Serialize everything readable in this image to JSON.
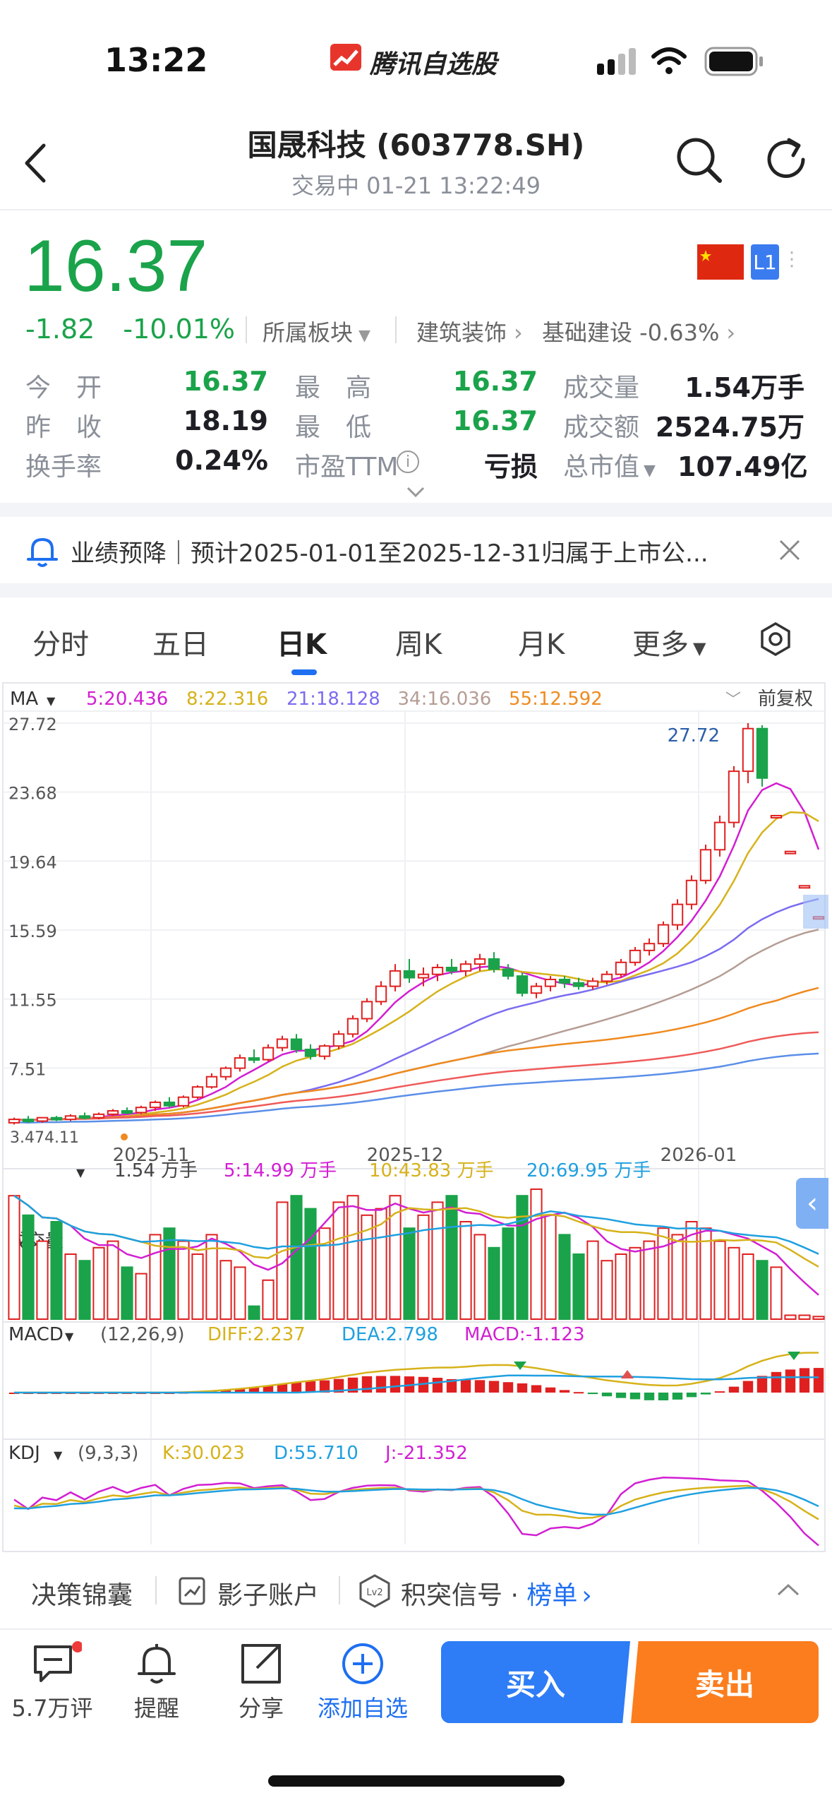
{
  "status_bar": {
    "time": "13:22",
    "app_brand": "腾讯自选股"
  },
  "header": {
    "title": "国晟科技 (603778.SH)",
    "subtitle": "交易中   01-21 13:22:49"
  },
  "quote": {
    "price": "16.37",
    "change": "-1.82",
    "change_pct": "-10.01%",
    "sector_label": "所属板块",
    "sector_1": "建筑装饰",
    "sector_2": "基础建设 -0.63%",
    "level_badge": "L1",
    "stats": {
      "open_label": "今　开",
      "open": "16.37",
      "high_label": "最　高",
      "high": "16.37",
      "volume_label": "成交量",
      "volume": "1.54万手",
      "prev_close_label": "昨　收",
      "prev_close": "18.19",
      "low_label": "最　低",
      "low": "16.37",
      "amount_label": "成交额",
      "amount": "2524.75万",
      "turnover_label": "换手率",
      "turnover": "0.24%",
      "pe_label": "市盈TTM",
      "pe": "亏损",
      "mcap_label": "总市值",
      "mcap": "107.49亿"
    }
  },
  "notice": {
    "text": "业绩预降｜预计2025-01-01至2025-12-31归属于上市公..."
  },
  "tabs": [
    {
      "label": "分时"
    },
    {
      "label": "五日"
    },
    {
      "label": "日K"
    },
    {
      "label": "周K"
    },
    {
      "label": "月K"
    },
    {
      "label": "更多"
    }
  ],
  "colors": {
    "up": "#e02020",
    "down": "#1aa34a",
    "accent": "#1e6ff1",
    "buy": "#2e7cf6",
    "sell": "#fb7d1e"
  },
  "chart_data": [
    {
      "type": "candlestick",
      "title": "",
      "indicator": "MA",
      "adjust_label": "前复权",
      "ma_legend": [
        {
          "name": "5",
          "value": "20.436",
          "color": "#d21fd2"
        },
        {
          "name": "8",
          "value": "22.316",
          "color": "#d6b21a"
        },
        {
          "name": "21",
          "value": "18.128",
          "color": "#7b6cf0"
        },
        {
          "name": "34",
          "value": "16.036",
          "color": "#b59d94"
        },
        {
          "name": "55",
          "value": "12.592",
          "color": "#ef8a1f"
        }
      ],
      "ylim": [
        3.47,
        27.72
      ],
      "y_ticks": [
        "27.72",
        "23.68",
        "19.64",
        "15.59",
        "11.55",
        "7.51"
      ],
      "x_ticks": [
        "2025-11",
        "2025-12",
        "2026-01"
      ],
      "annotations": [
        "27.72",
        "3.47",
        "4.11"
      ],
      "candles": [
        [
          4.3,
          4.6,
          4.2,
          4.5
        ],
        [
          4.5,
          4.7,
          4.3,
          4.4
        ],
        [
          4.4,
          4.6,
          4.3,
          4.6
        ],
        [
          4.6,
          4.7,
          4.4,
          4.5
        ],
        [
          4.5,
          4.8,
          4.4,
          4.7
        ],
        [
          4.7,
          4.9,
          4.5,
          4.6
        ],
        [
          4.6,
          4.9,
          4.5,
          4.8
        ],
        [
          4.8,
          5.1,
          4.7,
          5.0
        ],
        [
          5.0,
          5.2,
          4.8,
          4.9
        ],
        [
          4.9,
          5.3,
          4.8,
          5.2
        ],
        [
          5.2,
          5.6,
          5.0,
          5.5
        ],
        [
          5.5,
          5.8,
          5.2,
          5.3
        ],
        [
          5.3,
          5.9,
          5.2,
          5.8
        ],
        [
          5.8,
          6.5,
          5.7,
          6.4
        ],
        [
          6.4,
          7.2,
          6.3,
          7.0
        ],
        [
          7.0,
          7.6,
          6.8,
          7.5
        ],
        [
          7.5,
          8.3,
          7.3,
          8.1
        ],
        [
          8.1,
          8.6,
          7.8,
          8.0
        ],
        [
          8.0,
          8.9,
          7.9,
          8.7
        ],
        [
          8.7,
          9.4,
          8.5,
          9.2
        ],
        [
          9.2,
          9.5,
          8.4,
          8.6
        ],
        [
          8.6,
          8.9,
          8.0,
          8.2
        ],
        [
          8.2,
          8.9,
          8.0,
          8.8
        ],
        [
          8.8,
          9.7,
          8.6,
          9.5
        ],
        [
          9.5,
          10.6,
          9.3,
          10.4
        ],
        [
          10.4,
          11.6,
          10.2,
          11.4
        ],
        [
          11.4,
          12.6,
          11.2,
          12.3
        ],
        [
          12.3,
          13.6,
          12.0,
          13.2
        ],
        [
          13.2,
          13.9,
          12.5,
          12.8
        ],
        [
          12.8,
          13.4,
          12.3,
          13.0
        ],
        [
          13.0,
          13.6,
          12.6,
          13.4
        ],
        [
          13.4,
          13.9,
          13.0,
          13.2
        ],
        [
          13.2,
          13.8,
          12.9,
          13.6
        ],
        [
          13.6,
          14.2,
          13.2,
          13.9
        ],
        [
          13.9,
          14.3,
          13.1,
          13.3
        ],
        [
          13.3,
          13.6,
          12.7,
          12.9
        ],
        [
          12.9,
          13.1,
          11.7,
          11.9
        ],
        [
          11.9,
          12.5,
          11.6,
          12.3
        ],
        [
          12.3,
          12.9,
          12.0,
          12.7
        ],
        [
          12.7,
          12.9,
          12.2,
          12.5
        ],
        [
          12.5,
          12.8,
          12.1,
          12.3
        ],
        [
          12.3,
          12.8,
          12.1,
          12.6
        ],
        [
          12.6,
          13.2,
          12.4,
          13.0
        ],
        [
          13.0,
          13.9,
          12.8,
          13.7
        ],
        [
          13.7,
          14.6,
          13.5,
          14.4
        ],
        [
          14.4,
          15.1,
          14.1,
          14.8
        ],
        [
          14.8,
          16.1,
          14.6,
          15.9
        ],
        [
          15.9,
          17.4,
          15.6,
          17.1
        ],
        [
          17.1,
          18.8,
          16.8,
          18.5
        ],
        [
          18.5,
          20.6,
          18.3,
          20.3
        ],
        [
          20.3,
          22.3,
          19.9,
          21.9
        ],
        [
          21.9,
          25.2,
          21.6,
          24.9
        ],
        [
          24.9,
          27.72,
          24.2,
          27.4
        ],
        [
          27.4,
          27.6,
          24.0,
          24.5
        ],
        [
          22.3,
          22.3,
          22.3,
          22.3
        ],
        [
          20.2,
          20.2,
          20.2,
          20.2
        ],
        [
          18.19,
          18.19,
          18.19,
          18.19
        ],
        [
          16.37,
          16.37,
          16.37,
          16.37
        ]
      ]
    },
    {
      "type": "bar",
      "title": "",
      "indicator": "成交量",
      "legend": [
        {
          "name": "",
          "value": "1.54 万手",
          "color": "#444444"
        },
        {
          "name": "5",
          "value": "14.99 万手",
          "color": "#d21fd2"
        },
        {
          "name": "10",
          "value": "43.83 万手",
          "color": "#d6b21a"
        },
        {
          "name": "20",
          "value": "69.95 万手",
          "color": "#1fa0e0"
        }
      ],
      "values": [
        95,
        80,
        60,
        75,
        50,
        45,
        55,
        60,
        40,
        35,
        65,
        70,
        60,
        50,
        65,
        45,
        40,
        10,
        30,
        90,
        95,
        85,
        70,
        90,
        95,
        80,
        85,
        95,
        70,
        80,
        90,
        95,
        75,
        65,
        55,
        70,
        95,
        100,
        80,
        65,
        50,
        60,
        45,
        50,
        55,
        60,
        70,
        65,
        75,
        70,
        60,
        55,
        50,
        45,
        40,
        3,
        3,
        2
      ]
    },
    {
      "type": "bar",
      "title": "",
      "indicator": "MACD",
      "params": "(12,26,9)",
      "legend": [
        {
          "name": "DIFF",
          "value": "2.237",
          "color": "#d6b21a"
        },
        {
          "name": "DEA",
          "value": "2.798",
          "color": "#1fa0e0"
        },
        {
          "name": "MACD",
          "value": "-1.123",
          "color": "#d21fd2"
        }
      ]
    },
    {
      "type": "line",
      "title": "",
      "indicator": "KDJ",
      "params": "(9,3,3)",
      "legend": [
        {
          "name": "K",
          "value": "30.023",
          "color": "#d6b21a"
        },
        {
          "name": "D",
          "value": "55.710",
          "color": "#1fa0e0"
        },
        {
          "name": "J",
          "value": "-21.352",
          "color": "#d21fd2"
        }
      ]
    }
  ],
  "sub_bar": {
    "item1": "决策锦囊",
    "item2": "影子账户",
    "item3": "积突信号 ·",
    "item3_link": "榜单"
  },
  "bottom_actions": {
    "comments": "5.7万评",
    "remind": "提醒",
    "share": "分享",
    "watch": "添加自选",
    "buy": "买入",
    "sell": "卖出"
  }
}
